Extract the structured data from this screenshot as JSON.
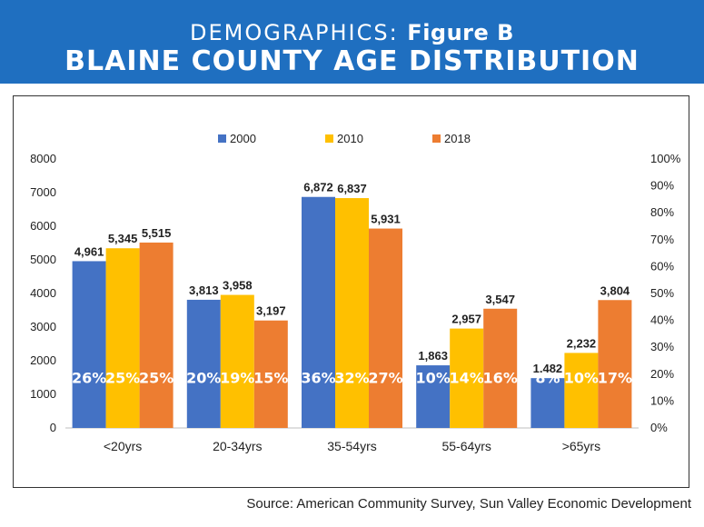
{
  "header": {
    "prefix": "DEMOGRAPHICS: ",
    "figure": "Figure B",
    "title": "BLAINE COUNTY AGE DISTRIBUTION"
  },
  "source": "Source: American Community Survey, Sun Valley Economic Development",
  "colors": {
    "header_bg": "#1f6fc0",
    "s2000": "#4472c4",
    "s2010": "#ffc000",
    "s2018": "#ed7d31"
  },
  "chart_data": {
    "type": "bar",
    "title": "BLAINE COUNTY AGE DISTRIBUTION",
    "categories": [
      "<20yrs",
      "20-34yrs",
      "35-54yrs",
      "55-64yrs",
      ">65yrs"
    ],
    "series": [
      {
        "name": "2000",
        "values": [
          4961,
          3813,
          6872,
          1863,
          1482
        ],
        "labels": [
          "4,961",
          "3,813",
          "6,872",
          "1,863",
          "1,482"
        ],
        "percents": [
          "26%",
          "20%",
          "36%",
          "10%",
          "8%"
        ]
      },
      {
        "name": "2010",
        "values": [
          5345,
          3958,
          6837,
          2957,
          2232
        ],
        "labels": [
          "5,345",
          "3,958",
          "6,837",
          "2,957",
          "2,232"
        ],
        "percents": [
          "25%",
          "19%",
          "32%",
          "14%",
          "10%"
        ]
      },
      {
        "name": "2018",
        "values": [
          5515,
          3197,
          5931,
          3547,
          3804
        ],
        "labels": [
          "5,515",
          "3,197",
          "5,931",
          "3,547",
          "3,804"
        ],
        "percents": [
          "25%",
          "15%",
          "27%",
          "16%",
          "17%"
        ]
      }
    ],
    "ylim": [
      0,
      8000
    ],
    "yticks": [
      "0",
      "1000",
      "2000",
      "3000",
      "4000",
      "5000",
      "6000",
      "7000",
      "8000"
    ],
    "y2lim": [
      0,
      100
    ],
    "y2ticks": [
      "0%",
      "10%",
      "20%",
      "30%",
      "40%",
      "50%",
      "60%",
      "70%",
      "80%",
      "90%",
      "100%"
    ],
    "legend_position": "top-center",
    "grid": false
  }
}
